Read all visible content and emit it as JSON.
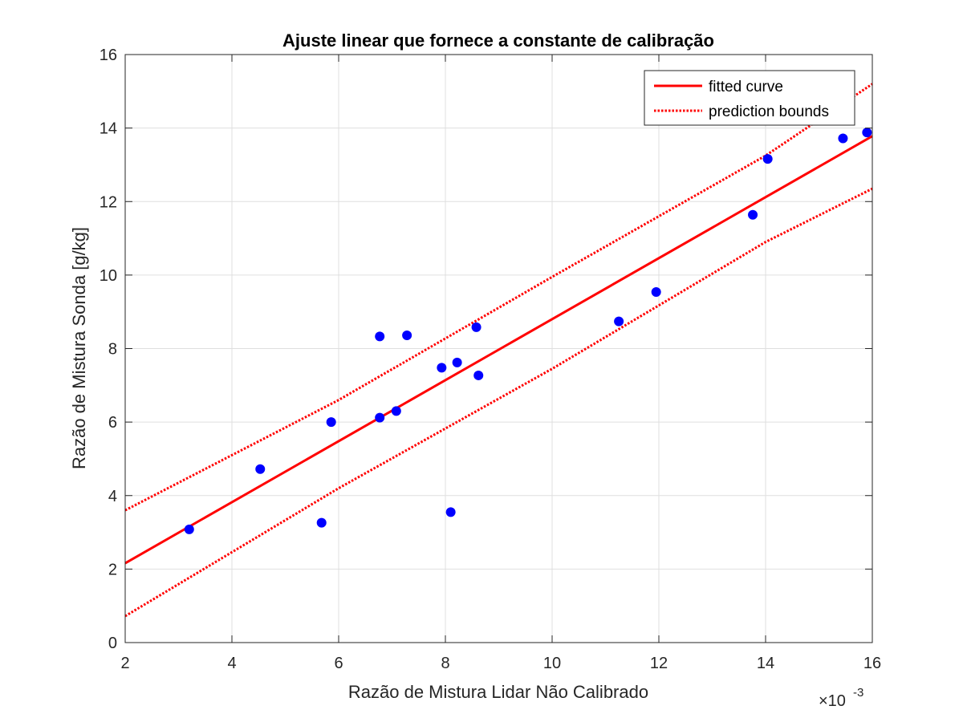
{
  "chart_data": {
    "type": "scatter",
    "title": "Ajuste linear que fornece a constante de calibração",
    "xlabel": "Razão de Mistura Lidar Não Calibrado",
    "ylabel": "Razão de Mistura Sonda [g/kg]",
    "x_exponent_label": "×10",
    "x_exponent_power": "-3",
    "xlim": [
      2,
      16
    ],
    "ylim": [
      0,
      16
    ],
    "xticks": [
      2,
      4,
      6,
      8,
      10,
      12,
      14,
      16
    ],
    "yticks": [
      0,
      2,
      4,
      6,
      8,
      10,
      12,
      14,
      16
    ],
    "grid": true,
    "legend_position": "top-right",
    "points": {
      "name": "",
      "color": "#0000ff",
      "x": [
        3.2,
        4.53,
        5.68,
        5.86,
        6.77,
        6.77,
        7.08,
        7.28,
        7.93,
        8.1,
        8.22,
        8.58,
        8.62,
        11.25,
        11.95,
        13.76,
        14.04,
        15.45,
        15.9
      ],
      "y": [
        3.08,
        4.72,
        3.26,
        6.0,
        8.33,
        6.12,
        6.3,
        8.36,
        7.48,
        3.55,
        7.62,
        8.58,
        7.27,
        8.74,
        9.54,
        11.64,
        13.16,
        13.72,
        13.88
      ]
    },
    "fitted_curve": {
      "name": "fitted curve",
      "color": "#ff0000",
      "slope": 0.83,
      "intercept": 0.5
    },
    "prediction_bounds": {
      "name": "prediction bounds",
      "color": "#ff0000",
      "upper": {
        "x": [
          2,
          6,
          10,
          14,
          16
        ],
        "y": [
          3.6,
          6.6,
          9.95,
          13.25,
          15.2
        ]
      },
      "lower": {
        "x": [
          2,
          6,
          10,
          14,
          16
        ],
        "y": [
          0.72,
          4.2,
          7.45,
          10.9,
          12.35
        ]
      }
    }
  }
}
